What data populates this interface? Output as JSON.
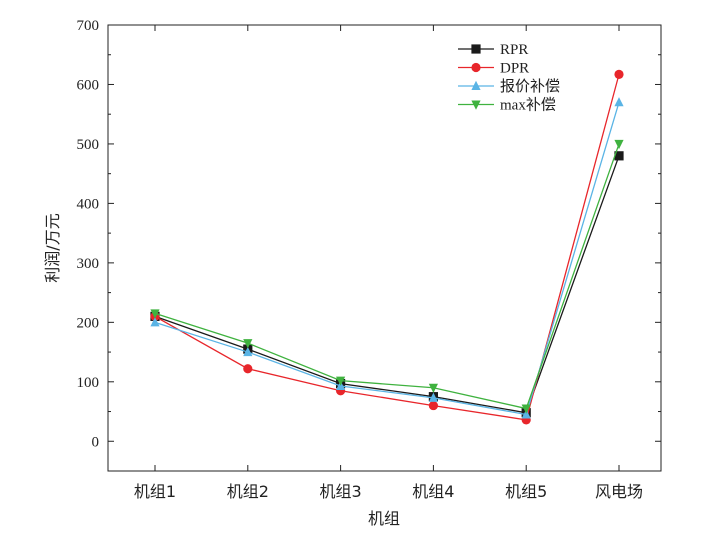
{
  "chart_data": {
    "type": "line",
    "title": "",
    "xlabel": "机组",
    "ylabel": "利润/万元",
    "ylim": [
      -50,
      700
    ],
    "yticks": [
      0,
      100,
      200,
      300,
      400,
      500,
      600,
      700
    ],
    "ytick_labels": [
      "0",
      "100",
      "200",
      "300",
      "400",
      "500",
      "600",
      "700"
    ],
    "categories": [
      "机组1",
      "机组2",
      "机组3",
      "机组4",
      "机组5",
      "风电场"
    ],
    "grid": false,
    "legend_position": "top-right",
    "series": [
      {
        "name": "RPR",
        "color": "#1a1a1a",
        "marker": "square",
        "values": [
          210,
          155,
          97,
          75,
          48,
          480
        ]
      },
      {
        "name": "DPR",
        "color": "#e8262b",
        "marker": "circle",
        "values": [
          210,
          122,
          85,
          60,
          36,
          617
        ]
      },
      {
        "name": "报价补偿",
        "color": "#5ab4e5",
        "marker": "triangle-up",
        "values": [
          200,
          150,
          93,
          73,
          45,
          570
        ]
      },
      {
        "name": "max补偿",
        "color": "#3fb23f",
        "marker": "triangle-down",
        "values": [
          215,
          165,
          102,
          90,
          55,
          500
        ]
      }
    ]
  }
}
